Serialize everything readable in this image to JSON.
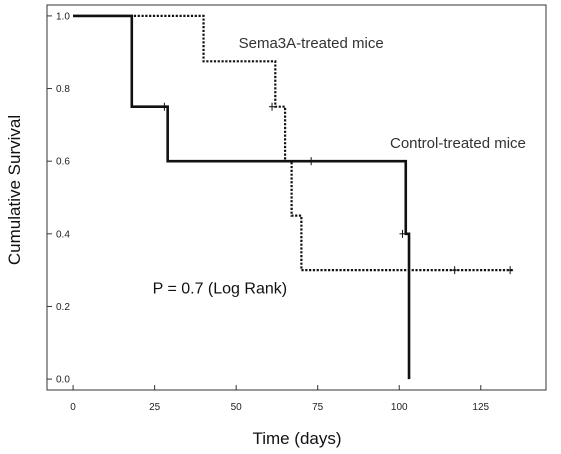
{
  "chart_data": {
    "type": "line",
    "step": true,
    "xlabel": "Time (days)",
    "ylabel": "Cumulative Survival",
    "xlim": [
      -8,
      145
    ],
    "ylim": [
      -0.03,
      1.03
    ],
    "xticks": [
      0,
      25,
      50,
      75,
      100,
      125
    ],
    "yticks": [
      0.0,
      0.2,
      0.4,
      0.6,
      0.8,
      1.0
    ],
    "ytick_labels": [
      "0.0",
      "0.2",
      "0.4",
      "0.6",
      "0.8",
      "1.0"
    ],
    "grid": false,
    "series": [
      {
        "name": "Control-treated mice",
        "style": "solid",
        "color": "#111111",
        "steps": [
          [
            0,
            1.0
          ],
          [
            18,
            0.75
          ],
          [
            29,
            0.6
          ],
          [
            102,
            0.4
          ],
          [
            103,
            0.0
          ]
        ],
        "end_x": 103,
        "censored": [
          [
            28,
            0.75
          ],
          [
            73,
            0.6
          ],
          [
            101,
            0.4
          ]
        ]
      },
      {
        "name": "Sema3A-treated mice",
        "style": "dotted",
        "color": "#111111",
        "steps": [
          [
            0,
            1.0
          ],
          [
            40,
            0.875
          ],
          [
            62,
            0.75
          ],
          [
            65,
            0.6
          ],
          [
            67,
            0.45
          ],
          [
            70,
            0.3
          ]
        ],
        "end_x": 135,
        "censored": [
          [
            61,
            0.75
          ],
          [
            117,
            0.3
          ],
          [
            134,
            0.3
          ]
        ]
      }
    ],
    "annotations": [
      {
        "text": "Sema3A-treated mice",
        "x": 73,
        "y": 0.925
      },
      {
        "text": "Control-treated mice",
        "x": 118,
        "y": 0.65
      },
      {
        "text": "P = 0.7 (Log Rank)",
        "x": 45,
        "y": 0.25
      }
    ]
  }
}
